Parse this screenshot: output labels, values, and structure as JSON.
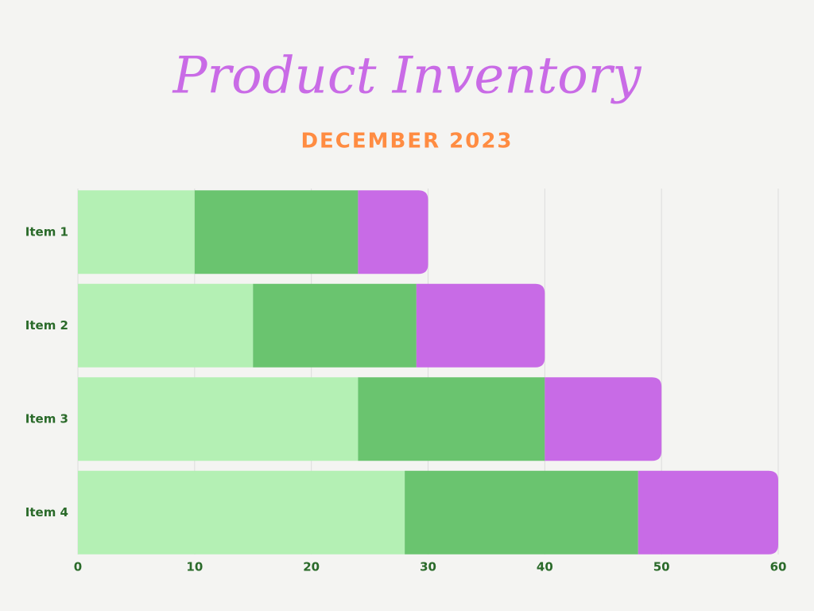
{
  "chart_data": {
    "type": "stacked-bar-horizontal",
    "title": "Product Inventory",
    "subtitle": "DECEMBER 2023",
    "categories": [
      "Item 1",
      "Item 2",
      "Item 3",
      "Item 4"
    ],
    "series": [
      {
        "color": "#b4f0b4",
        "values": [
          10,
          15,
          24,
          28
        ]
      },
      {
        "color": "#6ac46f",
        "values": [
          14,
          14,
          16,
          20
        ]
      },
      {
        "color": "#c86be6",
        "values": [
          6,
          11,
          10,
          12
        ]
      }
    ],
    "xlim": [
      0,
      60
    ],
    "xticks": [
      0,
      10,
      20,
      30,
      40,
      50,
      60
    ],
    "grid": true
  }
}
